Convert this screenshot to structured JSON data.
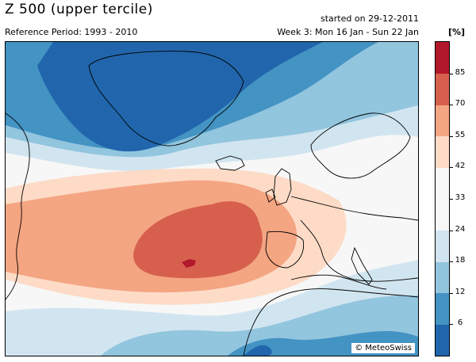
{
  "header": {
    "title": "Z 500 (upper tercile)",
    "reference_period": "Reference Period: 1993 - 2010",
    "started": "started on 29-12-2011",
    "week": "Week 3: Mon 16 Jan - Sun 22 Jan",
    "unit": "[%]"
  },
  "map": {
    "credit": "MeteoSwiss",
    "credit_icon": "copyright-icon"
  },
  "colorbar": {
    "levels": [
      "6",
      "12",
      "18",
      "24",
      "33",
      "42",
      "55",
      "70",
      "85"
    ],
    "colors": [
      "#2166ac",
      "#4393c3",
      "#92c5de",
      "#d1e5f0",
      "#f7f7f7",
      "#f7f7f7",
      "#fddbc7",
      "#f4a582",
      "#d6604d",
      "#b2182b"
    ]
  },
  "palette": {
    "blue_dark": "#2166ac",
    "blue_mid": "#4393c3",
    "blue_light": "#92c5de",
    "blue_pale": "#d1e5f0",
    "neutral": "#f7f7f7",
    "red_pale": "#fddbc7",
    "red_light": "#f4a582",
    "red_mid": "#d6604d",
    "red_dark": "#b2182b"
  }
}
